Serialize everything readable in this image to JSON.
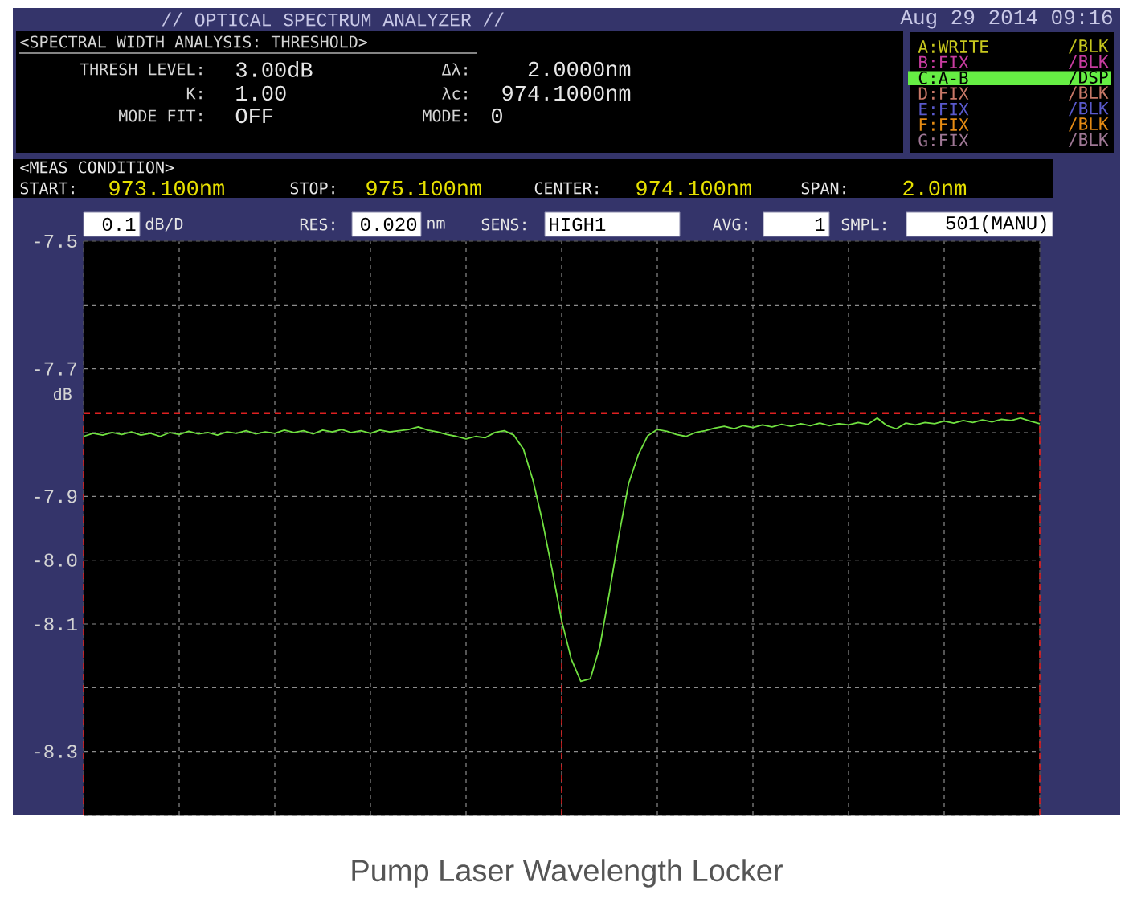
{
  "chart_data": {
    "type": "line",
    "ylabel": "dB",
    "annotations": [
      "// OPTICAL SPECTRUM ANALYZER //",
      "Aug 29 2014 09:16",
      "<SPECTRAL WIDTH ANALYSIS: THRESHOLD>",
      "THRESH LEVEL:",
      "3.00dB",
      "Δλ:",
      "2.0000nm",
      "K:",
      "1.00",
      "λc:",
      "974.1000nm",
      "MODE FIT:",
      "OFF",
      "MODE:",
      "0",
      "A:WRITE",
      "/BLK",
      "B:FIX",
      "/BLK",
      "C:A-B",
      "/DSP",
      "D:FIX",
      "/BLK",
      "E:FIX",
      "/BLK",
      "F:FIX",
      "/BLK",
      "G:FIX",
      "/BLK",
      "<MEAS CONDITION>",
      "START:",
      "973.100nm",
      "STOP:",
      "975.100nm",
      "CENTER:",
      "974.100nm",
      "SPAN:",
      "2.0nm",
      "0.1",
      "dB/D",
      "RES:",
      "0.020",
      "nm",
      "SENS:",
      "HIGH1",
      "AVG:",
      "1",
      "SMPL:",
      "501(MANU)",
      "Pump Laser Wavelength Locker"
    ],
    "categories": [
      null,
      null,
      null,
      null,
      null,
      null,
      null,
      null,
      null,
      null,
      null,
      null,
      null,
      null,
      null,
      null,
      null,
      null,
      null,
      null,
      null,
      null,
      null,
      null,
      null,
      null,
      null,
      null,
      null,
      null,
      null,
      null,
      null,
      null,
      null,
      null,
      null,
      null,
      null,
      null,
      null,
      null,
      null,
      null,
      null,
      null,
      null,
      null,
      null,
      null,
      null,
      null,
      null,
      null,
      null,
      null,
      null,
      null,
      null,
      null,
      null,
      null,
      null,
      null,
      null,
      null,
      null,
      null,
      null,
      null,
      null,
      null,
      null,
      null,
      null,
      null,
      null,
      null,
      null,
      null,
      null,
      null,
      null,
      null,
      null,
      null,
      null,
      null,
      null,
      null,
      null,
      null,
      null,
      null,
      null,
      null,
      null,
      null,
      null,
      null,
      null
    ],
    "values": [
      -7.806,
      -7.801,
      -7.804,
      -7.8,
      -7.803,
      -7.799,
      -7.804,
      -7.801,
      -7.806,
      -7.8,
      -7.803,
      -7.798,
      -7.802,
      -7.8,
      -7.804,
      -7.799,
      -7.801,
      -7.797,
      -7.802,
      -7.799,
      -7.801,
      -7.796,
      -7.8,
      -7.797,
      -7.802,
      -7.796,
      -7.799,
      -7.795,
      -7.8,
      -7.797,
      -7.801,
      -7.796,
      -7.799,
      -7.797,
      -7.795,
      -7.791,
      -7.796,
      -7.799,
      -7.803,
      -7.806,
      -7.81,
      -7.806,
      -7.808,
      -7.8,
      -7.797,
      -7.804,
      -7.826,
      -7.875,
      -7.94,
      -8.015,
      -8.095,
      -8.155,
      -8.19,
      -8.186,
      -8.135,
      -8.05,
      -7.96,
      -7.88,
      -7.835,
      -7.805,
      -7.795,
      -7.798,
      -7.803,
      -7.806,
      -7.8,
      -7.797,
      -7.793,
      -7.79,
      -7.794,
      -7.789,
      -7.792,
      -7.788,
      -7.791,
      -7.787,
      -7.79,
      -7.786,
      -7.789,
      -7.785,
      -7.789,
      -7.786,
      -7.788,
      -7.784,
      -7.787,
      -7.777,
      -7.789,
      -7.794,
      -7.785,
      -7.788,
      -7.784,
      -7.786,
      -7.782,
      -7.785,
      -7.781,
      -7.784,
      -7.78,
      -7.783,
      -7.779,
      -7.781,
      -7.777,
      -7.782,
      -7.786
    ],
    "color": "#70e040",
    "marker": "none",
    "line_style": "solid",
    "grid": true,
    "tick_labels": "y",
    "ylim": [
      -8.4,
      -7.5
    ],
    "yticks": [
      -7.5,
      {
        "value": -7.6,
        "label": null
      },
      -7.7,
      {
        "value": -7.8,
        "label": null
      },
      -7.9,
      {
        "value": -8.0,
        "label": "-8.0"
      },
      -8.1,
      {
        "value": -8.2,
        "label": null
      },
      -8.3,
      {
        "value": -8.4,
        "label": null
      }
    ],
    "ref_lines": [
      {
        "axis": "y",
        "value": -7.77,
        "color": "#dd2020",
        "line_style": "dashed"
      }
    ]
  }
}
